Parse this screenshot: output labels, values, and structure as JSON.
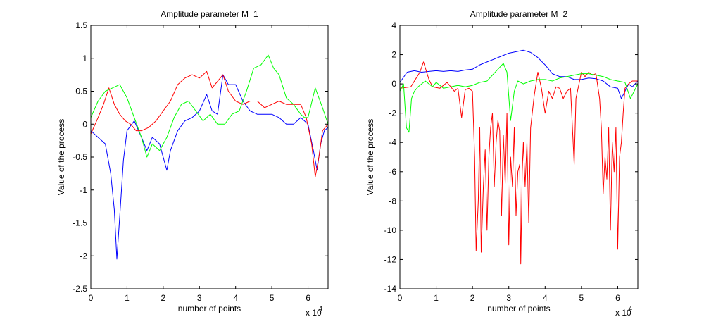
{
  "chart_data": [
    {
      "type": "line",
      "title": "Amplitude parameter M=1",
      "xlabel": "number of points",
      "ylabel": "Value of the process",
      "x_multiplier_label": "x 10",
      "x_multiplier_exp": "4",
      "xlim": [
        0,
        65536
      ],
      "ylim": [
        -2.5,
        1.5
      ],
      "xticks": [
        0,
        10000,
        20000,
        30000,
        40000,
        50000,
        60000
      ],
      "xtick_labels": [
        "0",
        "1",
        "2",
        "3",
        "4",
        "5",
        "6"
      ],
      "yticks": [
        1.5,
        1,
        0.5,
        0,
        -0.5,
        -1,
        -1.5,
        -2,
        -2.5
      ],
      "ytick_labels": [
        "1.5",
        "1",
        "0.5",
        "0",
        "-0.5",
        "-1",
        "-1.5",
        "-2",
        "-2.5"
      ],
      "series": [
        {
          "color": "#0000ff",
          "x": [
            0,
            2000,
            4000,
            5500,
            6500,
            7200,
            8000,
            9000,
            10000,
            12000,
            14000,
            15500,
            17000,
            19000,
            20000,
            21000,
            22000,
            24000,
            26000,
            28000,
            30000,
            32000,
            33500,
            35000,
            36500,
            38000,
            40000,
            42000,
            44000,
            46000,
            48000,
            50000,
            52000,
            54000,
            56000,
            58000,
            60000,
            61500,
            62500,
            63500,
            64500,
            65536
          ],
          "y": [
            -0.1,
            -0.2,
            -0.3,
            -0.75,
            -1.3,
            -2.05,
            -1.4,
            -0.55,
            -0.1,
            0.05,
            -0.2,
            -0.4,
            -0.2,
            -0.3,
            -0.5,
            -0.7,
            -0.4,
            -0.1,
            0.05,
            0.1,
            0.2,
            0.45,
            0.2,
            0.15,
            0.75,
            0.6,
            0.6,
            0.35,
            0.2,
            0.15,
            0.15,
            0.15,
            0.1,
            0.0,
            0.0,
            0.1,
            0.0,
            -0.4,
            -0.7,
            -0.3,
            -0.1,
            -0.05
          ]
        },
        {
          "color": "#ff0000",
          "x": [
            0,
            2000,
            3500,
            5000,
            6500,
            8000,
            9500,
            11000,
            12500,
            14000,
            16000,
            18000,
            20000,
            22000,
            24000,
            26000,
            28000,
            30000,
            32000,
            33500,
            35000,
            36500,
            38000,
            40000,
            42000,
            44000,
            46000,
            48000,
            50000,
            52000,
            54000,
            56000,
            58000,
            59500,
            61000,
            62000,
            63000,
            64000,
            65536
          ],
          "y": [
            -0.15,
            0.1,
            0.3,
            0.55,
            0.3,
            0.15,
            0.05,
            0.0,
            -0.1,
            -0.1,
            -0.05,
            0.05,
            0.2,
            0.35,
            0.6,
            0.7,
            0.75,
            0.7,
            0.8,
            0.55,
            0.65,
            0.75,
            0.5,
            0.35,
            0.3,
            0.35,
            0.35,
            0.25,
            0.3,
            0.35,
            0.3,
            0.3,
            0.3,
            0.1,
            -0.3,
            -0.8,
            -0.5,
            -0.1,
            0.0
          ]
        },
        {
          "color": "#00ff00",
          "x": [
            0,
            2000,
            4000,
            6000,
            8000,
            10000,
            12000,
            14000,
            15500,
            17000,
            19000,
            21000,
            23000,
            25000,
            27000,
            29000,
            31000,
            33000,
            35000,
            37000,
            39000,
            41000,
            43000,
            45000,
            47000,
            49000,
            50500,
            52000,
            54000,
            56000,
            58000,
            59000,
            60000,
            62000,
            64000,
            65536
          ],
          "y": [
            0.1,
            0.35,
            0.5,
            0.55,
            0.6,
            0.4,
            0.1,
            -0.2,
            -0.5,
            -0.3,
            -0.4,
            -0.2,
            0.1,
            0.3,
            0.35,
            0.2,
            0.05,
            0.15,
            0.0,
            0.0,
            0.15,
            0.2,
            0.5,
            0.85,
            0.9,
            1.05,
            0.85,
            0.75,
            0.4,
            0.3,
            0.15,
            0.1,
            0.1,
            0.55,
            0.25,
            0.0
          ]
        }
      ]
    },
    {
      "type": "line",
      "title": "Amplitude parameter M=2",
      "xlabel": "number of points",
      "ylabel": "Value of the process",
      "x_multiplier_label": "x 10",
      "x_multiplier_exp": "4",
      "xlim": [
        0,
        65536
      ],
      "ylim": [
        -14,
        4
      ],
      "xticks": [
        0,
        10000,
        20000,
        30000,
        40000,
        50000,
        60000
      ],
      "xtick_labels": [
        "0",
        "1",
        "2",
        "3",
        "4",
        "5",
        "6"
      ],
      "yticks": [
        4,
        2,
        0,
        -2,
        -4,
        -6,
        -8,
        -10,
        -12,
        -14
      ],
      "ytick_labels": [
        "4",
        "2",
        "0",
        "-2",
        "-4",
        "-6",
        "-8",
        "-10",
        "-12",
        "-14"
      ],
      "series": [
        {
          "color": "#0000ff",
          "x": [
            0,
            2000,
            4000,
            6000,
            8000,
            10000,
            12000,
            14000,
            16000,
            18000,
            20000,
            22000,
            24000,
            26000,
            28000,
            30000,
            32000,
            34000,
            36000,
            38000,
            40000,
            42000,
            44000,
            46000,
            48000,
            50000,
            52000,
            54000,
            56000,
            58000,
            60000,
            61000,
            62000,
            63000,
            64000,
            65536
          ],
          "y": [
            0.1,
            0.8,
            0.9,
            0.8,
            0.85,
            0.9,
            0.85,
            0.9,
            0.85,
            0.95,
            1.0,
            1.3,
            1.5,
            1.7,
            1.9,
            2.1,
            2.2,
            2.3,
            2.15,
            1.8,
            1.3,
            0.7,
            0.5,
            0.5,
            0.3,
            0.3,
            0.4,
            0.35,
            0.2,
            -0.2,
            -0.3,
            -1.0,
            -0.5,
            0.0,
            -0.2,
            0.2
          ]
        },
        {
          "color": "#ff0000",
          "x": [
            0,
            3000,
            5500,
            6500,
            8000,
            9000,
            11000,
            13000,
            15000,
            16000,
            17000,
            18000,
            19000,
            20000,
            20600,
            21000,
            21600,
            22000,
            22400,
            23000,
            23500,
            24000,
            24500,
            25000,
            25500,
            26000,
            26500,
            27000,
            27500,
            28000,
            28500,
            29000,
            29500,
            30000,
            30500,
            31000,
            31500,
            32000,
            32500,
            33000,
            33300,
            33700,
            34000,
            34500,
            35000,
            35500,
            36000,
            37000,
            38000,
            39000,
            40000,
            41000,
            42000,
            43000,
            44000,
            45000,
            46000,
            47000,
            48000,
            48500,
            49000,
            50000,
            51000,
            52000,
            53000,
            54000,
            55000,
            55500,
            56000,
            56500,
            57000,
            57500,
            58000,
            58500,
            59000,
            59500,
            60000,
            60500,
            61000,
            61500,
            62000,
            63000,
            64000,
            65536
          ],
          "y": [
            -0.3,
            -0.2,
            0.8,
            1.5,
            0.3,
            -0.2,
            -0.3,
            0.1,
            -0.5,
            -0.3,
            -2.3,
            -0.4,
            -0.3,
            -0.5,
            -5.0,
            -11.4,
            -8.0,
            -3.0,
            -11.5,
            -7.0,
            -4.5,
            -10.0,
            -5.0,
            -3.0,
            -2.0,
            -7.0,
            -4.0,
            -2.5,
            -3.2,
            -9.0,
            -3.5,
            -6.8,
            -2.0,
            -11.0,
            -5.0,
            -7.0,
            -3.0,
            -9.0,
            -6.0,
            -5.5,
            -12.3,
            -6.0,
            -4.0,
            -7.0,
            -4.0,
            -9.5,
            -3.0,
            -0.8,
            0.8,
            -0.3,
            -2.0,
            -0.5,
            -1.0,
            -0.2,
            -0.3,
            -1.0,
            -0.5,
            -0.3,
            -5.5,
            -1.0,
            -0.4,
            0.8,
            0.5,
            0.8,
            0.6,
            0.7,
            -1.0,
            -3.0,
            -7.5,
            -5.0,
            -6.5,
            -3.0,
            -10.0,
            -4.0,
            -6.0,
            -3.0,
            -11.3,
            -5.0,
            -4.0,
            -2.0,
            -0.3,
            0.0,
            0.2,
            0.2
          ]
        },
        {
          "color": "#00ff00",
          "x": [
            0,
            1000,
            1800,
            2500,
            3200,
            4000,
            5000,
            6000,
            7000,
            8000,
            9000,
            10000,
            12000,
            14000,
            16000,
            18000,
            20000,
            22000,
            24000,
            25500,
            27000,
            28500,
            29500,
            30500,
            31500,
            32500,
            34000,
            36000,
            38000,
            40000,
            42000,
            44000,
            46000,
            48000,
            50000,
            52000,
            54000,
            56000,
            58000,
            60000,
            62000,
            63500,
            65536
          ],
          "y": [
            -0.5,
            0.0,
            -3.0,
            -3.3,
            -1.0,
            -0.5,
            -0.2,
            0.0,
            0.2,
            0.0,
            -0.2,
            0.1,
            -0.3,
            -0.2,
            -0.1,
            -0.2,
            -0.1,
            0.1,
            0.2,
            0.6,
            1.0,
            1.4,
            0.8,
            -2.5,
            -0.5,
            0.2,
            0.0,
            0.2,
            0.3,
            0.3,
            0.2,
            0.4,
            0.5,
            0.6,
            0.7,
            0.7,
            0.6,
            0.5,
            0.3,
            0.2,
            0.1,
            -1.0,
            0.0
          ]
        }
      ]
    }
  ]
}
